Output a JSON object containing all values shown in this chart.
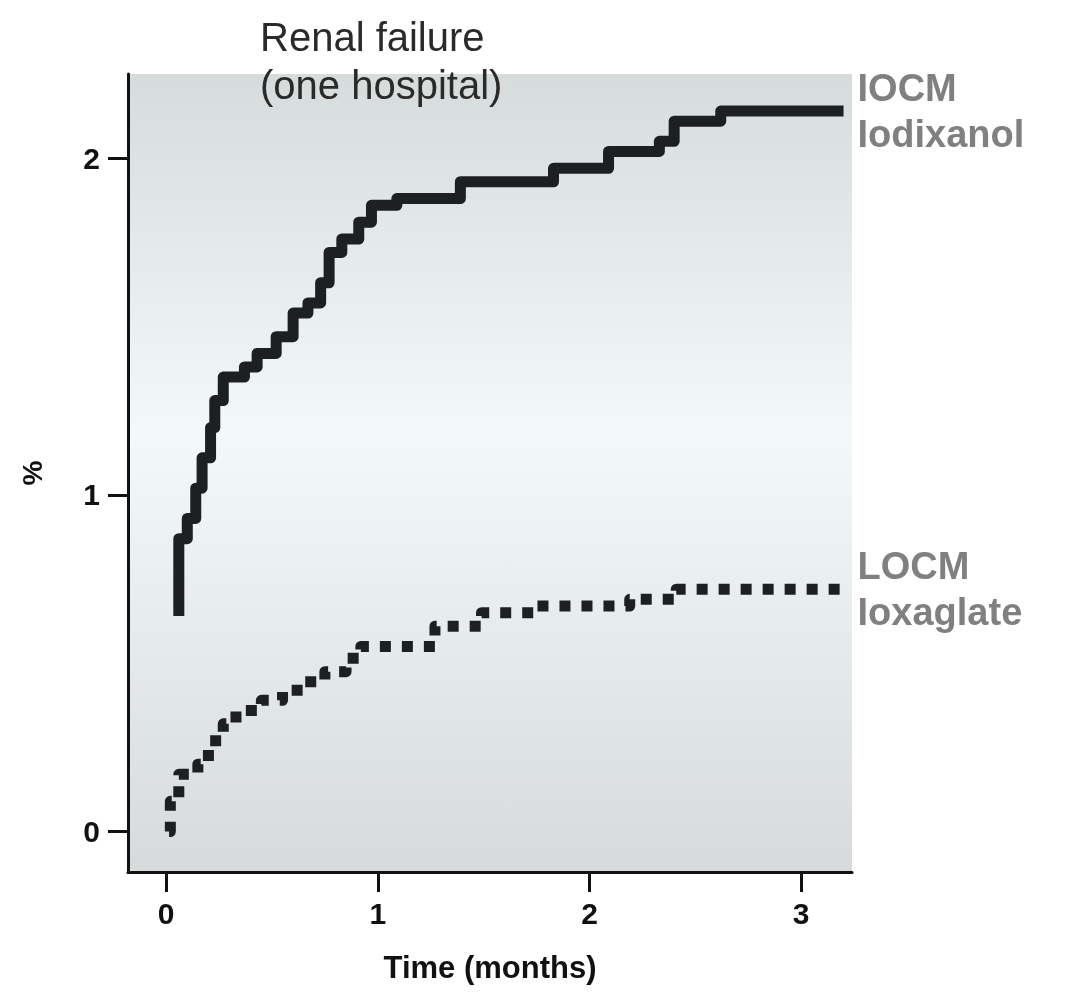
{
  "chart_data": {
    "type": "step",
    "title": "Renal failure\n(one hospital)",
    "xlabel": "Time (months)",
    "ylabel": "%",
    "xlim": [
      -0.18,
      3.24
    ],
    "xticks": [
      0,
      1,
      2,
      3
    ],
    "ylim": [
      -0.12,
      2.25
    ],
    "yticks": [
      0,
      1,
      2
    ],
    "grid": false,
    "legend": false,
    "marker": "none",
    "series": [
      {
        "name": "IOCM\nIodixanol",
        "color": "#1c2020",
        "line_style": "solid",
        "x": [
          0.06,
          0.06,
          0.1,
          0.14,
          0.17,
          0.21,
          0.23,
          0.27,
          0.37,
          0.43,
          0.52,
          0.6,
          0.67,
          0.73,
          0.77,
          0.83,
          0.91,
          0.97,
          1.09,
          1.39,
          1.83,
          2.09,
          2.33,
          2.4,
          2.62,
          3.2
        ],
        "values": [
          0.64,
          0.87,
          0.93,
          1.02,
          1.11,
          1.2,
          1.28,
          1.35,
          1.38,
          1.42,
          1.47,
          1.54,
          1.57,
          1.63,
          1.72,
          1.76,
          1.81,
          1.86,
          1.88,
          1.93,
          1.97,
          2.02,
          2.05,
          2.11,
          2.14,
          2.14
        ]
      },
      {
        "name": "LOCM\nIoxaglate",
        "color": "#1c2020",
        "line_style": "dotted",
        "x": [
          0.014,
          0.02,
          0.06,
          0.15,
          0.2,
          0.27,
          0.33,
          0.45,
          0.55,
          0.65,
          0.75,
          0.85,
          0.92,
          1.27,
          1.49,
          1.75,
          2.19,
          2.41,
          3.2
        ],
        "values": [
          0,
          0.09,
          0.17,
          0.2,
          0.27,
          0.32,
          0.36,
          0.39,
          0.42,
          0.445,
          0.475,
          0.515,
          0.55,
          0.61,
          0.65,
          0.67,
          0.69,
          0.72,
          0.72
        ]
      }
    ]
  }
}
